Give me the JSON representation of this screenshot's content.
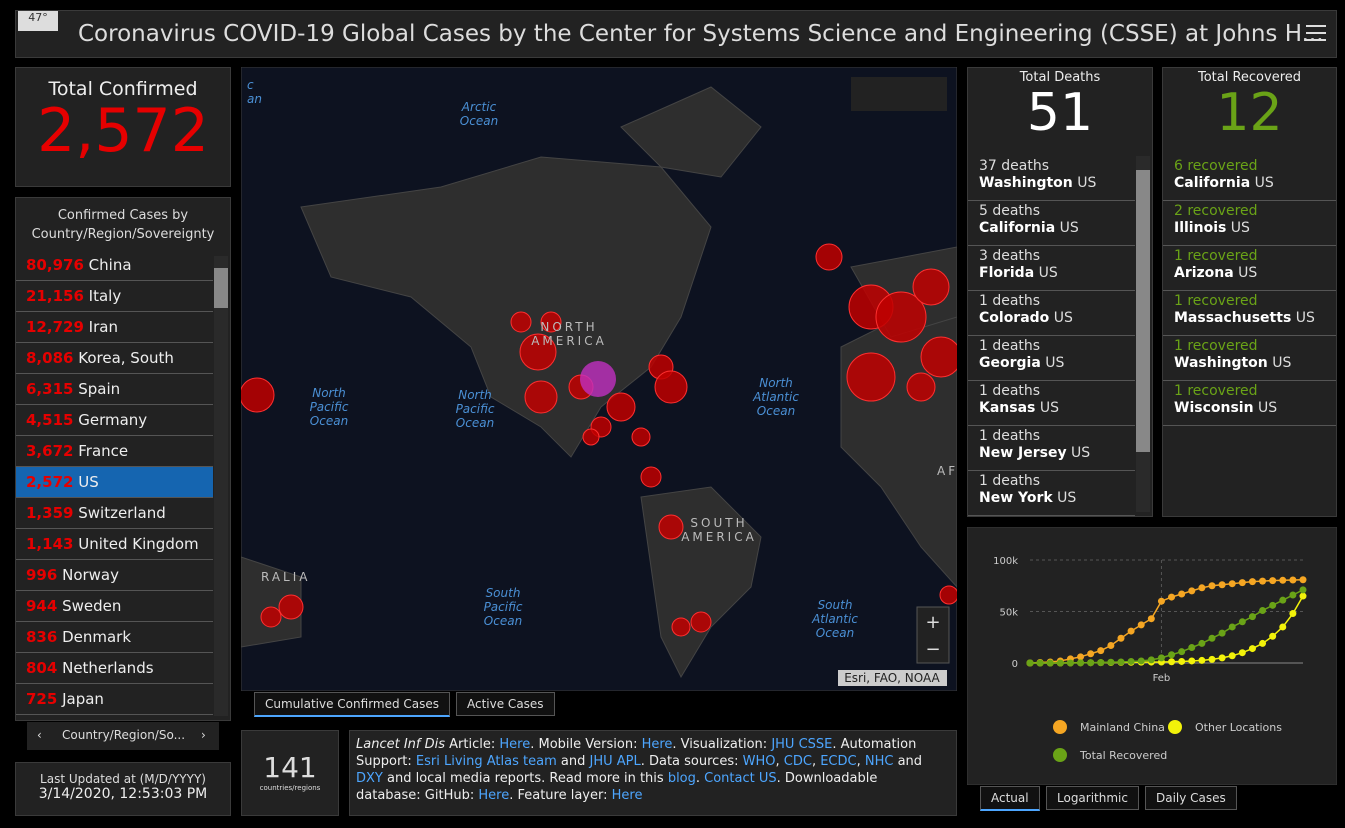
{
  "header": {
    "title": "Coronavirus COVID-19 Global Cases by the Center for Systems Science and Engineering (CSSE) at Johns H...",
    "weather": "47°"
  },
  "total_confirmed": {
    "label": "Total Confirmed",
    "value": "2,572"
  },
  "country_list": {
    "title": "Confirmed Cases by Country/Region/Sovereignty",
    "selected": 7,
    "rows": [
      {
        "count": "80,976",
        "name": "China"
      },
      {
        "count": "21,156",
        "name": "Italy"
      },
      {
        "count": "12,729",
        "name": "Iran"
      },
      {
        "count": "8,086",
        "name": "Korea, South"
      },
      {
        "count": "6,315",
        "name": "Spain"
      },
      {
        "count": "4,515",
        "name": "Germany"
      },
      {
        "count": "3,672",
        "name": "France"
      },
      {
        "count": "2,572",
        "name": "US"
      },
      {
        "count": "1,359",
        "name": "Switzerland"
      },
      {
        "count": "1,143",
        "name": "United Kingdom"
      },
      {
        "count": "996",
        "name": "Norway"
      },
      {
        "count": "944",
        "name": "Sweden"
      },
      {
        "count": "836",
        "name": "Denmark"
      },
      {
        "count": "804",
        "name": "Netherlands"
      },
      {
        "count": "725",
        "name": "Japan"
      }
    ],
    "footer": "Country/Region/So..."
  },
  "last_updated": {
    "label": "Last Updated at (M/D/YYYY)",
    "value": "3/14/2020, 12:53:03 PM"
  },
  "map": {
    "labels": [
      "Arctic Ocean",
      "North Pacific Ocean",
      "North Pacific Ocean",
      "NORTH AMERICA",
      "North Atlantic Ocean",
      "SOUTH AMERICA",
      "South Pacific Ocean",
      "South Atlantic Ocean",
      "AFRI",
      "RALIA",
      "c an"
    ],
    "attribution": "Esri, FAO, NOAA",
    "tabs": [
      "Cumulative Confirmed Cases",
      "Active Cases"
    ]
  },
  "countries": {
    "value": "141",
    "label": "countries/regions"
  },
  "info": {
    "segments": [
      {
        "text": "Lancet Inf Dis",
        "italic": true
      },
      {
        "text": " Article: "
      },
      {
        "text": "Here",
        "link": true
      },
      {
        "text": ". Mobile Version: "
      },
      {
        "text": "Here",
        "link": true
      },
      {
        "text": ". Visualization: "
      },
      {
        "text": "JHU CSSE",
        "link": true
      },
      {
        "text": ". Automation Support: "
      },
      {
        "text": "Esri Living Atlas team",
        "link": true
      },
      {
        "text": " and "
      },
      {
        "text": "JHU APL",
        "link": true
      },
      {
        "text": ". Data sources: "
      },
      {
        "text": "WHO",
        "link": true
      },
      {
        "text": ", "
      },
      {
        "text": "CDC",
        "link": true
      },
      {
        "text": ", "
      },
      {
        "text": "ECDC",
        "link": true
      },
      {
        "text": ", "
      },
      {
        "text": "NHC",
        "link": true
      },
      {
        "text": " and "
      },
      {
        "text": "DXY",
        "link": true
      },
      {
        "text": " and local media reports. Read more in this "
      },
      {
        "text": "blog",
        "link": true
      },
      {
        "text": ". "
      },
      {
        "text": "Contact US",
        "link": true
      },
      {
        "text": ". Downloadable database: GitHub: "
      },
      {
        "text": "Here",
        "link": true
      },
      {
        "text": ". Feature layer: "
      },
      {
        "text": "Here",
        "link": true
      }
    ]
  },
  "deaths": {
    "title": "Total Deaths",
    "value": "51",
    "rows": [
      {
        "count": "37 deaths",
        "place": "Washington",
        "country": "US"
      },
      {
        "count": "5 deaths",
        "place": "California",
        "country": "US"
      },
      {
        "count": "3 deaths",
        "place": "Florida",
        "country": "US"
      },
      {
        "count": "1 deaths",
        "place": "Colorado",
        "country": "US"
      },
      {
        "count": "1 deaths",
        "place": "Georgia",
        "country": "US"
      },
      {
        "count": "1 deaths",
        "place": "Kansas",
        "country": "US"
      },
      {
        "count": "1 deaths",
        "place": "New Jersey",
        "country": "US"
      },
      {
        "count": "1 deaths",
        "place": "New York",
        "country": "US"
      }
    ]
  },
  "recovered": {
    "title": "Total Recovered",
    "value": "12",
    "rows": [
      {
        "count": "6 recovered",
        "place": "California",
        "country": "US"
      },
      {
        "count": "2 recovered",
        "place": "Illinois",
        "country": "US"
      },
      {
        "count": "1 recovered",
        "place": "Arizona",
        "country": "US"
      },
      {
        "count": "1 recovered",
        "place": "Massachusetts",
        "country": "US"
      },
      {
        "count": "1 recovered",
        "place": "Washington",
        "country": "US"
      },
      {
        "count": "1 recovered",
        "place": "Wisconsin",
        "country": "US"
      }
    ]
  },
  "chart_data": {
    "type": "line",
    "categories": [
      null,
      null,
      null,
      null,
      null,
      null,
      null,
      null,
      null,
      null,
      null,
      null,
      null,
      "Feb",
      null,
      null,
      null,
      null,
      null,
      null,
      null,
      null,
      null,
      null,
      null,
      null,
      null,
      null
    ],
    "series": [
      {
        "name": "Mainland China",
        "color": "#f5a623",
        "values": [
          0,
          500,
          1000,
          2000,
          4000,
          6000,
          9000,
          12000,
          17000,
          24000,
          31000,
          37000,
          43000,
          60000,
          64000,
          67000,
          70000,
          73000,
          75000,
          76000,
          77000,
          78000,
          79000,
          79500,
          80000,
          80300,
          80600,
          80800
        ]
      },
      {
        "name": "Other Locations",
        "color": "#f2f20a",
        "values": [
          0,
          0,
          0,
          0,
          100,
          200,
          300,
          400,
          500,
          600,
          700,
          800,
          900,
          1000,
          1200,
          1500,
          2000,
          2500,
          3500,
          5000,
          7000,
          10000,
          14000,
          19000,
          26000,
          35000,
          48000,
          65000
        ]
      },
      {
        "name": "Total Recovered",
        "color": "#6aa317",
        "values": [
          0,
          0,
          0,
          0,
          0,
          100,
          200,
          400,
          700,
          1000,
          1500,
          2000,
          3000,
          5000,
          8000,
          11000,
          15000,
          19000,
          24000,
          29000,
          35000,
          40000,
          45000,
          51000,
          56000,
          61000,
          66000,
          71000
        ]
      }
    ],
    "ylim": [
      0,
      100000
    ],
    "yticks": [
      0,
      {
        "value": 50000,
        "label": "50k"
      },
      {
        "value": 100000,
        "label": "100k"
      }
    ],
    "grid": true,
    "tabs": [
      "Actual",
      "Logarithmic",
      "Daily Cases"
    ]
  }
}
